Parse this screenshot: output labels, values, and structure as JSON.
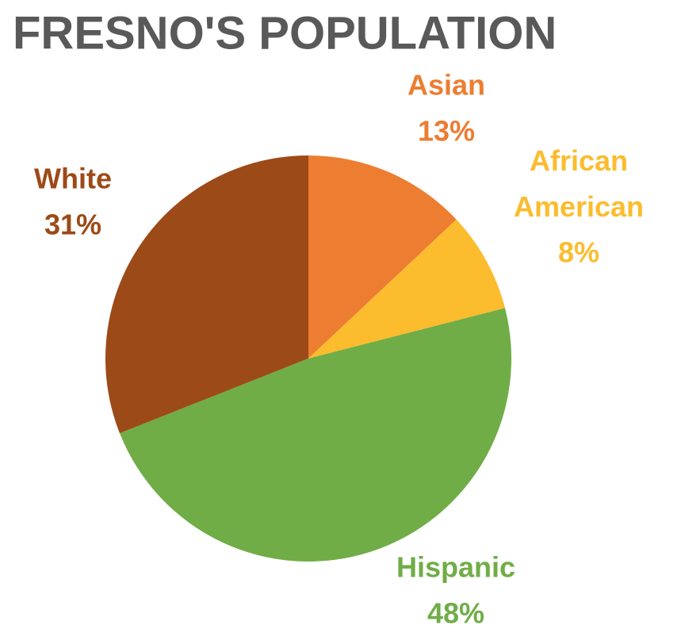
{
  "chart_data": {
    "type": "pie",
    "title": "FRESNO'S POPULATION",
    "categories": [
      "Asian",
      "African American",
      "Hispanic",
      "White"
    ],
    "values": [
      13,
      8,
      48,
      31
    ],
    "value_labels": [
      "13%",
      "8%",
      "48%",
      "31%"
    ],
    "colors": [
      "#ED7D31",
      "#FBBC2E",
      "#70AD47",
      "#9C4A18"
    ]
  }
}
